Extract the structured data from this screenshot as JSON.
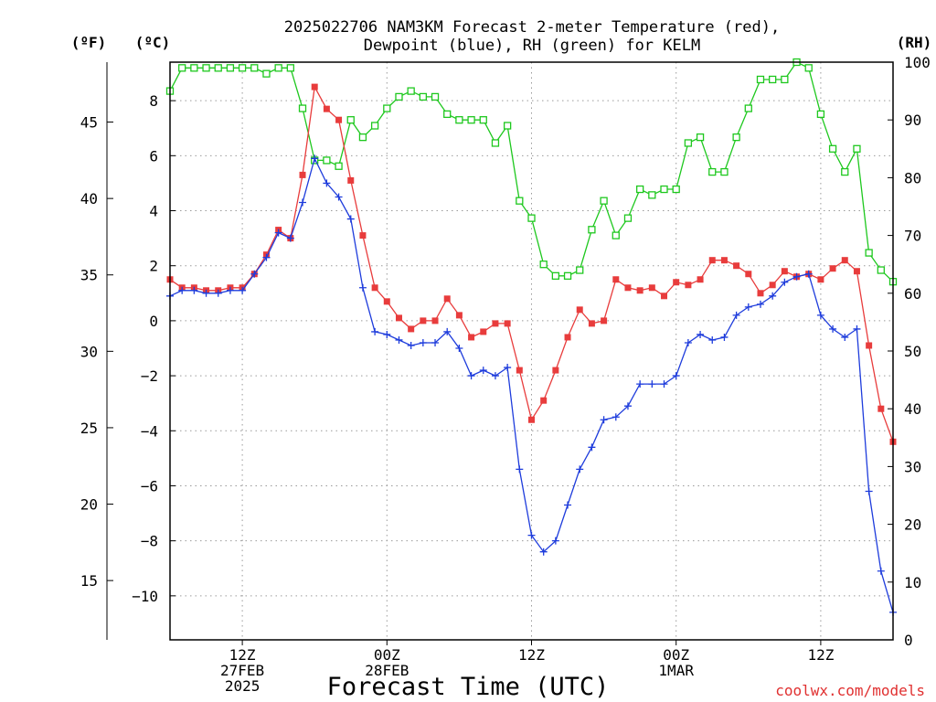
{
  "title_line1": "2025022706 NAM3KM Forecast 2-meter Temperature (red),",
  "title_line2": "Dewpoint (blue), RH (green) for KELM",
  "units": {
    "fahrenheit": "(ºF)",
    "celsius": "(ºC)",
    "rh": "(RH)"
  },
  "xlabel": "Forecast Time (UTC)",
  "credit": "coolwx.com/models",
  "colors": {
    "temperature": "#e83c3c",
    "dewpoint": "#1e3cdc",
    "rh": "#1ec81e"
  },
  "chart_data": {
    "type": "line",
    "x_unit": "forecast hour (UTC, from 2025-02-27 06Z)",
    "xlim": [
      0,
      60
    ],
    "x_ticks": [
      {
        "hour": 6,
        "lines": [
          "12Z",
          "27FEB",
          "2025"
        ]
      },
      {
        "hour": 18,
        "lines": [
          "00Z",
          "28FEB"
        ]
      },
      {
        "hour": 30,
        "lines": [
          "12Z"
        ]
      },
      {
        "hour": 42,
        "lines": [
          "00Z",
          "1MAR"
        ]
      },
      {
        "hour": 54,
        "lines": [
          "12Z"
        ]
      }
    ],
    "celsius_axis": {
      "ylim": [
        -11.6,
        9.4
      ],
      "ticks": [
        "8",
        "6",
        "4",
        "2",
        "0",
        "−2",
        "−4",
        "−6",
        "−8",
        "−10"
      ]
    },
    "fahrenheit_axis": {
      "ticks": [
        "45",
        "40",
        "35",
        "30",
        "25",
        "20",
        "15"
      ]
    },
    "rh_axis": {
      "ylim": [
        0,
        100
      ],
      "ticks": [
        "100",
        "90",
        "80",
        "70",
        "60",
        "50",
        "40",
        "30",
        "20",
        "10",
        "0"
      ]
    },
    "series": [
      {
        "key": "temperature",
        "unit": "C",
        "marker": "filled-square",
        "x": [
          0,
          1,
          2,
          3,
          4,
          5,
          6,
          7,
          8,
          9,
          10,
          11,
          12,
          13,
          14,
          15,
          16,
          17,
          18,
          19,
          20,
          21,
          22,
          23,
          24,
          25,
          26,
          27,
          28,
          29,
          30,
          31,
          32,
          33,
          34,
          35,
          36,
          37,
          38,
          39,
          40,
          41,
          42,
          43,
          44,
          45,
          46,
          47,
          48,
          49,
          50,
          51,
          52,
          53,
          54,
          55,
          56,
          57,
          58,
          59,
          60
        ],
        "y": [
          1.5,
          1.2,
          1.2,
          1.1,
          1.1,
          1.2,
          1.2,
          1.7,
          2.4,
          3.3,
          3.0,
          5.3,
          8.5,
          7.7,
          7.3,
          5.1,
          3.1,
          1.2,
          0.7,
          0.1,
          -0.3,
          0.0,
          0.0,
          0.8,
          0.2,
          -0.6,
          -0.4,
          -0.1,
          -0.1,
          -1.8,
          -3.6,
          -2.9,
          -1.8,
          -0.6,
          0.4,
          -0.1,
          0.0,
          1.5,
          1.2,
          1.1,
          1.2,
          0.9,
          1.4,
          1.3,
          1.5,
          2.2,
          2.2,
          2.0,
          1.7,
          1.0,
          1.3,
          1.8,
          1.6,
          1.7,
          1.5,
          1.9,
          2.2,
          1.8,
          -0.9,
          -3.2,
          -4.4
        ]
      },
      {
        "key": "dewpoint",
        "unit": "C",
        "marker": "plus",
        "x": [
          0,
          1,
          2,
          3,
          4,
          5,
          6,
          7,
          8,
          9,
          10,
          11,
          12,
          13,
          14,
          15,
          16,
          17,
          18,
          19,
          20,
          21,
          22,
          23,
          24,
          25,
          26,
          27,
          28,
          29,
          30,
          31,
          32,
          33,
          34,
          35,
          36,
          37,
          38,
          39,
          40,
          41,
          42,
          43,
          44,
          45,
          46,
          47,
          48,
          49,
          50,
          51,
          52,
          53,
          54,
          55,
          56,
          57,
          58,
          59,
          60
        ],
        "y": [
          0.9,
          1.1,
          1.1,
          1.0,
          1.0,
          1.1,
          1.1,
          1.7,
          2.3,
          3.2,
          3.0,
          4.3,
          5.9,
          5.0,
          4.5,
          3.7,
          1.2,
          -0.4,
          -0.5,
          -0.7,
          -0.9,
          -0.8,
          -0.8,
          -0.4,
          -1.0,
          -2.0,
          -1.8,
          -2.0,
          -1.7,
          -5.4,
          -7.8,
          -8.4,
          -8.0,
          -6.7,
          -5.4,
          -4.6,
          -3.6,
          -3.5,
          -3.1,
          -2.3,
          -2.3,
          -2.3,
          -2.0,
          -0.8,
          -0.5,
          -0.7,
          -0.6,
          0.2,
          0.5,
          0.6,
          0.9,
          1.4,
          1.6,
          1.7,
          0.2,
          -0.3,
          -0.6,
          -0.3,
          -6.2,
          -9.1,
          -10.6
        ]
      },
      {
        "key": "rh",
        "unit": "%",
        "marker": "open-square",
        "x": [
          0,
          1,
          2,
          3,
          4,
          5,
          6,
          7,
          8,
          9,
          10,
          11,
          12,
          13,
          14,
          15,
          16,
          17,
          18,
          19,
          20,
          21,
          22,
          23,
          24,
          25,
          26,
          27,
          28,
          29,
          30,
          31,
          32,
          33,
          34,
          35,
          36,
          37,
          38,
          39,
          40,
          41,
          42,
          43,
          44,
          45,
          46,
          47,
          48,
          49,
          50,
          51,
          52,
          53,
          54,
          55,
          56,
          57,
          58,
          59,
          60
        ],
        "y": [
          95,
          99,
          99,
          99,
          99,
          99,
          99,
          99,
          98,
          99,
          99,
          92,
          83,
          83,
          82,
          90,
          87,
          89,
          92,
          94,
          95,
          94,
          94,
          91,
          90,
          90,
          90,
          86,
          89,
          76,
          73,
          65,
          63,
          63,
          64,
          71,
          76,
          70,
          73,
          78,
          77,
          78,
          78,
          86,
          87,
          81,
          81,
          87,
          92,
          97,
          97,
          97,
          100,
          99,
          91,
          85,
          81,
          85,
          67,
          64,
          62
        ]
      }
    ]
  }
}
